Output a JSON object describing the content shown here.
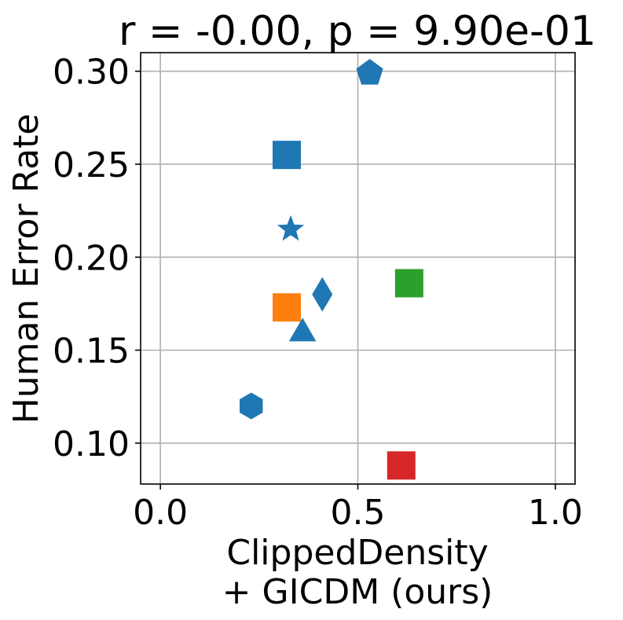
{
  "chart_data": {
    "type": "scatter",
    "title": "r = -0.00, p = 9.90e-01",
    "xlabel_lines": [
      "ClippedDensity",
      "+ GICDM (ours)"
    ],
    "ylabel": "Human Error Rate",
    "xlim": [
      -0.05,
      1.05
    ],
    "ylim": [
      0.078,
      0.31
    ],
    "xticks": [
      0.0,
      0.5,
      1.0
    ],
    "xtick_labels": [
      "0.0",
      "0.5",
      "1.0"
    ],
    "yticks": [
      0.1,
      0.15,
      0.2,
      0.25,
      0.3
    ],
    "ytick_labels": [
      "0.10",
      "0.15",
      "0.20",
      "0.25",
      "0.30"
    ],
    "grid": true,
    "colors": {
      "blue": "#1f77b4",
      "orange": "#ff7f0e",
      "green": "#2ca02c",
      "red": "#d62728",
      "grid": "#b0b0b0"
    },
    "points": [
      {
        "x": 0.53,
        "y": 0.299,
        "marker": "pentagon",
        "color": "#1f77b4"
      },
      {
        "x": 0.32,
        "y": 0.255,
        "marker": "square",
        "color": "#1f77b4"
      },
      {
        "x": 0.33,
        "y": 0.215,
        "marker": "star",
        "color": "#1f77b4"
      },
      {
        "x": 0.41,
        "y": 0.18,
        "marker": "diamond",
        "color": "#1f77b4"
      },
      {
        "x": 0.32,
        "y": 0.173,
        "marker": "square",
        "color": "#ff7f0e"
      },
      {
        "x": 0.36,
        "y": 0.159,
        "marker": "triangle",
        "color": "#1f77b4"
      },
      {
        "x": 0.23,
        "y": 0.12,
        "marker": "hexagon",
        "color": "#1f77b4"
      },
      {
        "x": 0.63,
        "y": 0.186,
        "marker": "square",
        "color": "#2ca02c"
      },
      {
        "x": 0.61,
        "y": 0.088,
        "marker": "square",
        "color": "#d62728"
      }
    ]
  }
}
